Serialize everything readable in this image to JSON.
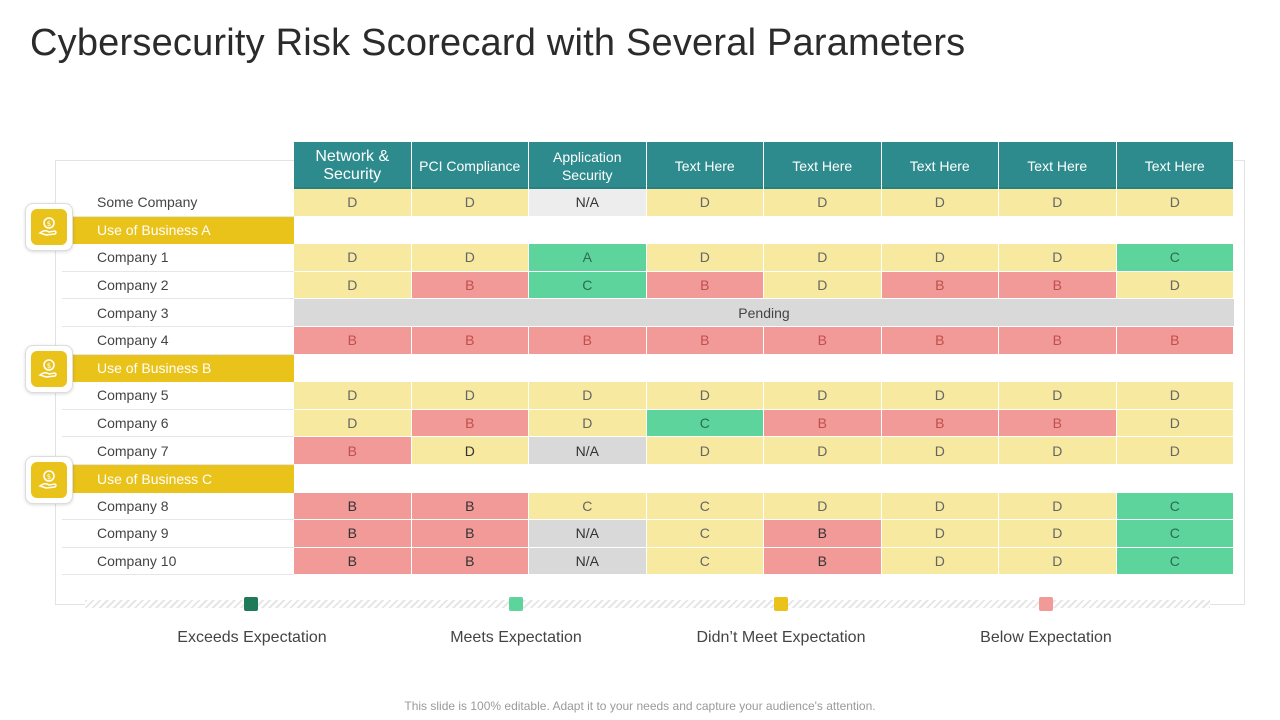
{
  "title": "Cybersecurity Risk Scorecard with Several Parameters",
  "columns": [
    "Network & Security",
    "PCI Compliance",
    "Application Security",
    "Text Here",
    "Text Here",
    "Text Here",
    "Text Here",
    "Text Here"
  ],
  "rows": [
    {
      "label": "Some Company",
      "cells": [
        [
          "D",
          "yellow"
        ],
        [
          "D",
          "yellow"
        ],
        [
          "N/A",
          "light"
        ],
        [
          "D",
          "yellow"
        ],
        [
          "D",
          "yellow"
        ],
        [
          "D",
          "yellow"
        ],
        [
          "D",
          "yellow"
        ],
        [
          "D",
          "yellow"
        ]
      ]
    },
    {
      "group": "Use of Business A"
    },
    {
      "label": "Company 1",
      "cells": [
        [
          "D",
          "yellow"
        ],
        [
          "D",
          "yellow"
        ],
        [
          "A",
          "green"
        ],
        [
          "D",
          "yellow"
        ],
        [
          "D",
          "yellow"
        ],
        [
          "D",
          "yellow"
        ],
        [
          "D",
          "yellow"
        ],
        [
          "C",
          "green"
        ]
      ]
    },
    {
      "label": "Company 2",
      "cells": [
        [
          "D",
          "yellow"
        ],
        [
          "B",
          "red"
        ],
        [
          "C",
          "green"
        ],
        [
          "B",
          "red"
        ],
        [
          "D",
          "yellow"
        ],
        [
          "B",
          "red"
        ],
        [
          "B",
          "red"
        ],
        [
          "D",
          "yellow"
        ]
      ]
    },
    {
      "label": "Company 3",
      "pending": "Pending"
    },
    {
      "label": "Company 4",
      "cells": [
        [
          "B",
          "red"
        ],
        [
          "B",
          "red"
        ],
        [
          "B",
          "red"
        ],
        [
          "B",
          "red"
        ],
        [
          "B",
          "red"
        ],
        [
          "B",
          "red"
        ],
        [
          "B",
          "red"
        ],
        [
          "B",
          "red"
        ]
      ]
    },
    {
      "group": "Use of Business B"
    },
    {
      "label": "Company 5",
      "cells": [
        [
          "D",
          "yellow"
        ],
        [
          "D",
          "yellow"
        ],
        [
          "D",
          "yellow"
        ],
        [
          "D",
          "yellow"
        ],
        [
          "D",
          "yellow"
        ],
        [
          "D",
          "yellow"
        ],
        [
          "D",
          "yellow"
        ],
        [
          "D",
          "yellow"
        ]
      ]
    },
    {
      "label": "Company 6",
      "cells": [
        [
          "D",
          "yellow"
        ],
        [
          "B",
          "red"
        ],
        [
          "D",
          "yellow"
        ],
        [
          "C",
          "green"
        ],
        [
          "B",
          "red"
        ],
        [
          "B",
          "red"
        ],
        [
          "B",
          "red"
        ],
        [
          "D",
          "yellow"
        ]
      ]
    },
    {
      "label": "Company 7",
      "cells": [
        [
          "B",
          "red"
        ],
        [
          "D",
          "yellow-dark"
        ],
        [
          "N/A",
          "gray"
        ],
        [
          "D",
          "yellow"
        ],
        [
          "D",
          "yellow"
        ],
        [
          "D",
          "yellow"
        ],
        [
          "D",
          "yellow"
        ],
        [
          "D",
          "yellow"
        ]
      ]
    },
    {
      "group": "Use of Business C"
    },
    {
      "label": "Company 8",
      "cells": [
        [
          "B",
          "red-dark"
        ],
        [
          "B",
          "red-dark"
        ],
        [
          "C",
          "yellow"
        ],
        [
          "C",
          "yellow"
        ],
        [
          "D",
          "yellow"
        ],
        [
          "D",
          "yellow"
        ],
        [
          "D",
          "yellow"
        ],
        [
          "C",
          "green"
        ]
      ]
    },
    {
      "label": "Company 9",
      "cells": [
        [
          "B",
          "red-dark"
        ],
        [
          "B",
          "red-dark"
        ],
        [
          "N/A",
          "gray"
        ],
        [
          "C",
          "yellow"
        ],
        [
          "B",
          "red-dark"
        ],
        [
          "D",
          "yellow"
        ],
        [
          "D",
          "yellow"
        ],
        [
          "C",
          "green"
        ]
      ]
    },
    {
      "label": "Company 10",
      "cells": [
        [
          "B",
          "red-dark"
        ],
        [
          "B",
          "red-dark"
        ],
        [
          "N/A",
          "gray"
        ],
        [
          "C",
          "yellow"
        ],
        [
          "B",
          "red-dark"
        ],
        [
          "D",
          "yellow"
        ],
        [
          "D",
          "yellow"
        ],
        [
          "C",
          "green"
        ]
      ]
    }
  ],
  "legend": [
    {
      "label": "Exceeds Expectation",
      "color": "#1f7a5a"
    },
    {
      "label": "Meets Expectation",
      "color": "#5dd49c"
    },
    {
      "label": "Didn’t Meet Expectation",
      "color": "#e9c21a"
    },
    {
      "label": "Below Expectation",
      "color": "#f19a97"
    }
  ],
  "badge_icon": "money-hand-icon",
  "footer": "This slide is 100% editable. Adapt it to your needs and capture your audience's attention."
}
